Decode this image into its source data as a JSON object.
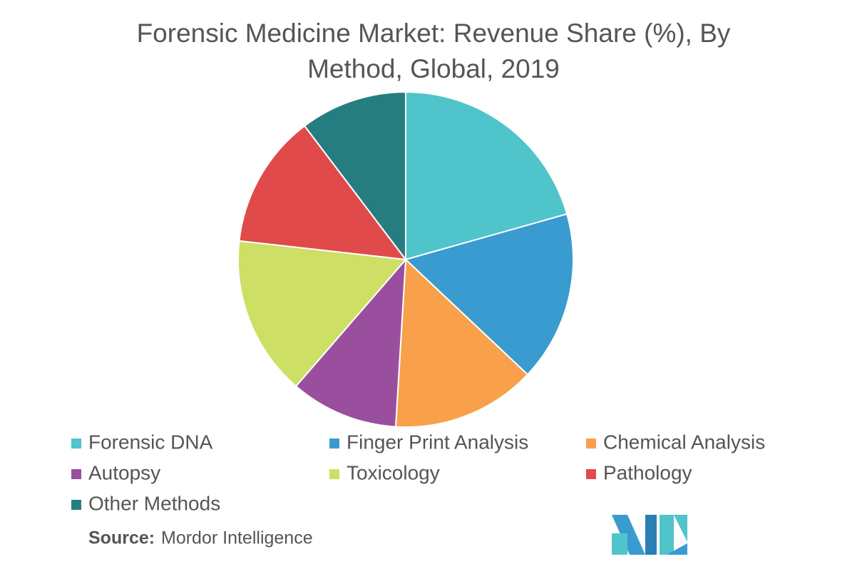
{
  "chart_data": {
    "type": "pie",
    "title": "Forensic Medicine Market: Revenue Share (%), By Method, Global, 2019",
    "categories": [
      "Forensic DNA",
      "Finger Print Analysis",
      "Chemical Analysis",
      "Autopsy",
      "Toxicology",
      "Pathology",
      "Other Methods"
    ],
    "values": [
      20.6,
      16.4,
      13.9,
      10.4,
      15.4,
      12.9,
      10.3
    ],
    "colors": [
      "#4fc4ca",
      "#3a9bd0",
      "#f9a04a",
      "#9a4f9e",
      "#cedf65",
      "#e04a4a",
      "#267d80"
    ],
    "source_label": "Source:",
    "source": "Mordor Intelligence"
  }
}
